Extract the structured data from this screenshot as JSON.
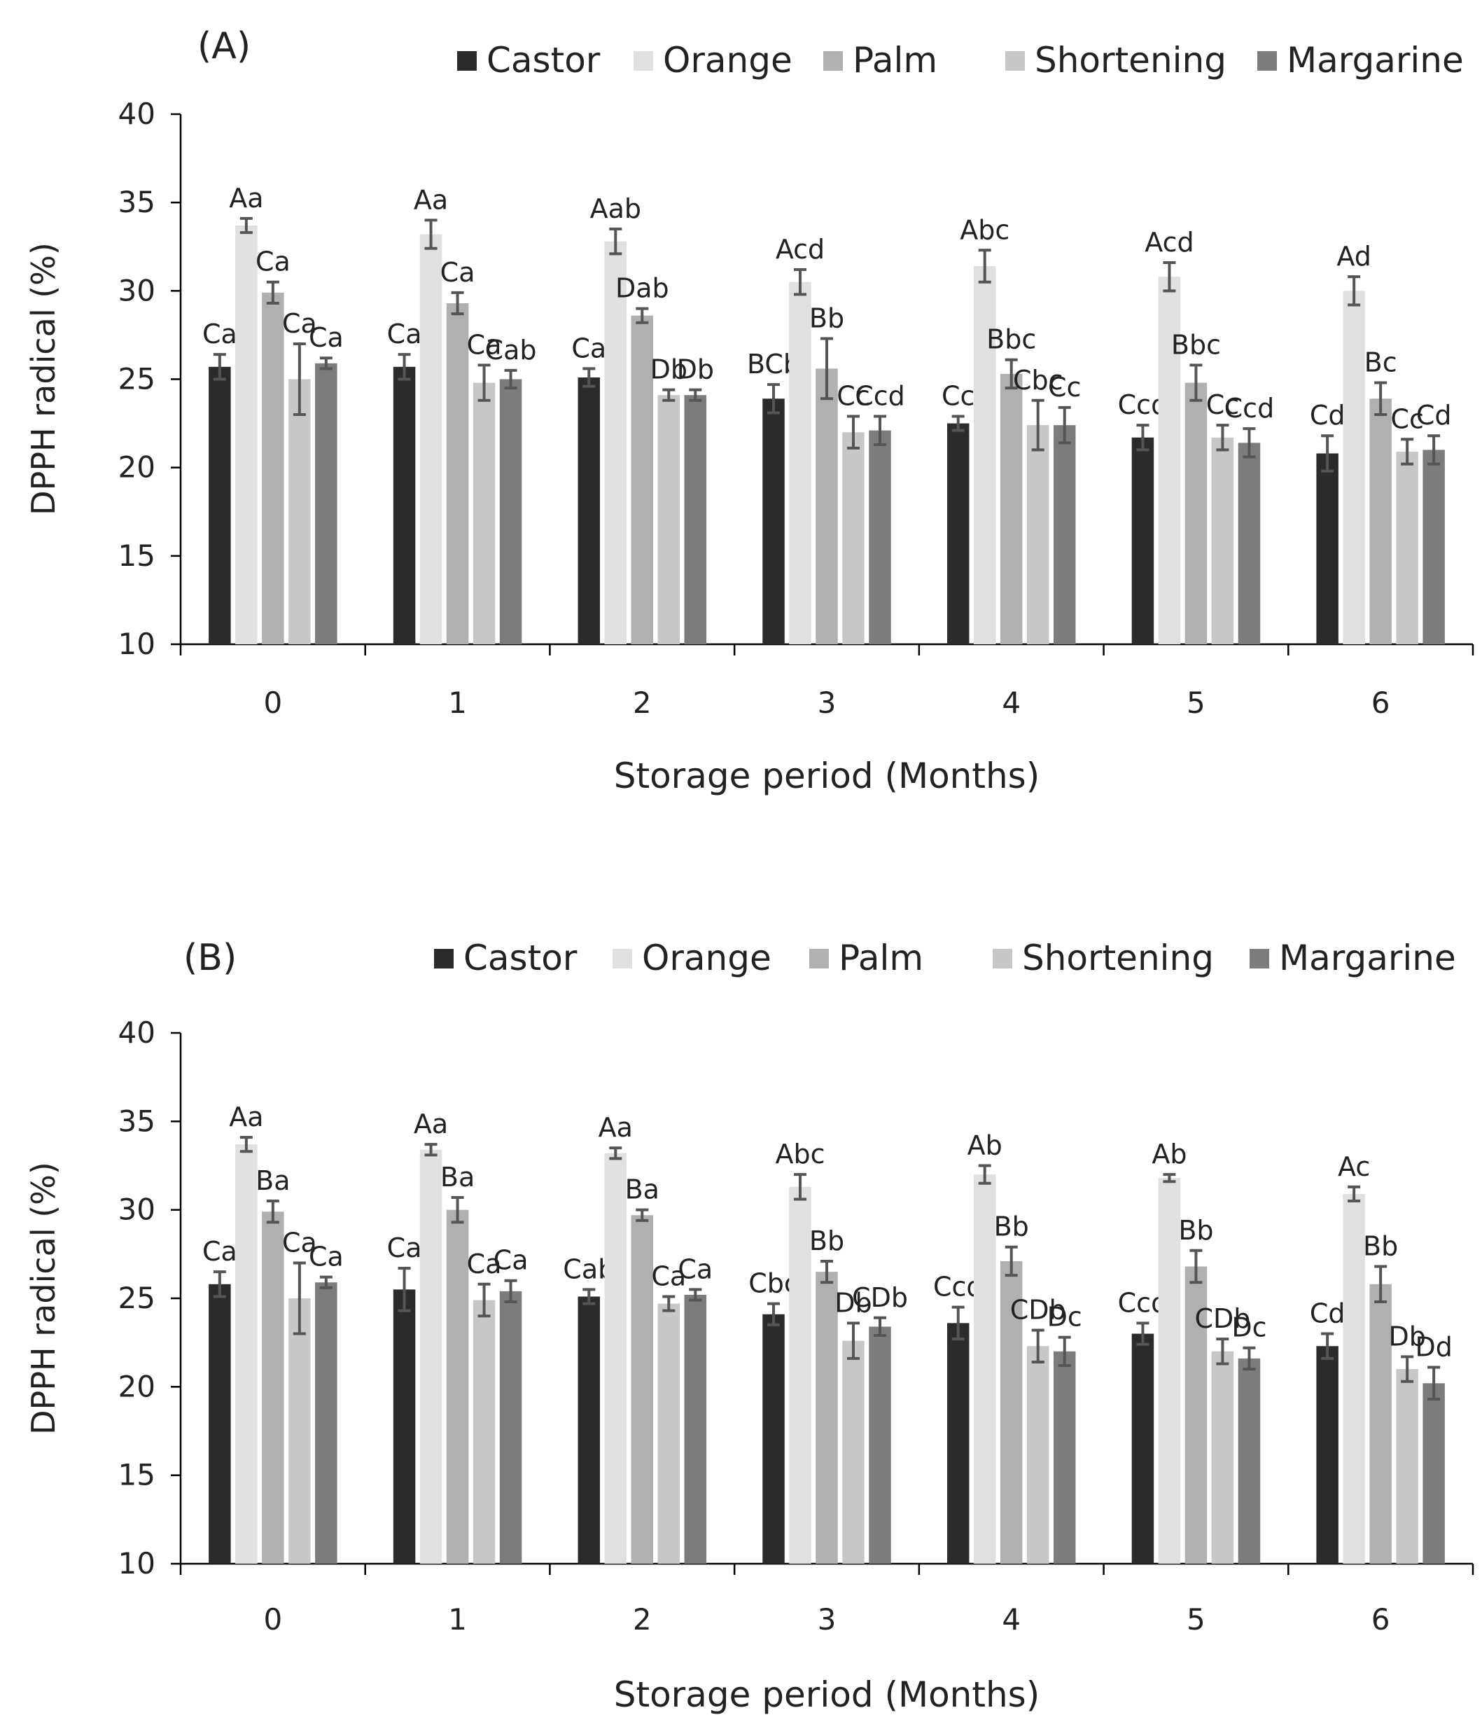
{
  "chart_data": [
    {
      "type": "bar",
      "panel_label": "(A)",
      "xlabel": "Storage period (Months)",
      "ylabel": "DPPH radical (%)",
      "ylim": [
        10,
        40
      ],
      "yticks": [
        "10",
        "15",
        "20",
        "25",
        "30",
        "35",
        "40"
      ],
      "categories": [
        "0",
        "1",
        "2",
        "3",
        "4",
        "5",
        "6"
      ],
      "legend_position": "top-right",
      "series": [
        {
          "name": "Castor",
          "color": "#2b2b2b",
          "values": [
            25.7,
            25.7,
            25.1,
            23.9,
            22.5,
            21.7,
            20.8
          ],
          "errors": [
            0.7,
            0.7,
            0.5,
            0.8,
            0.4,
            0.7,
            1.0
          ],
          "labels": [
            "Ca",
            "Ca",
            "Ca",
            "BCb",
            "Cc",
            "Ccd",
            "Cd"
          ]
        },
        {
          "name": "Orange",
          "color": "#e0e0e0",
          "values": [
            33.7,
            33.2,
            32.8,
            30.5,
            31.4,
            30.8,
            30.0
          ],
          "errors": [
            0.4,
            0.8,
            0.7,
            0.7,
            0.9,
            0.8,
            0.8
          ],
          "labels": [
            "Aa",
            "Aa",
            "Aab",
            "Acd",
            "Abc",
            "Acd",
            "Ad"
          ]
        },
        {
          "name": "Palm",
          "color": "#b0b0b0",
          "values": [
            29.9,
            29.3,
            28.6,
            25.6,
            25.3,
            24.8,
            23.9
          ],
          "errors": [
            0.6,
            0.6,
            0.4,
            1.7,
            0.8,
            1.0,
            0.9
          ],
          "labels": [
            "Ca",
            "Ca",
            "Dab",
            "Bb",
            "Bbc",
            "Bbc",
            "Bc"
          ]
        },
        {
          "name": "Shortening",
          "color": "#c7c7c7",
          "values": [
            25.0,
            24.8,
            24.1,
            22.0,
            22.4,
            21.7,
            20.9
          ],
          "errors": [
            2.0,
            1.0,
            0.3,
            0.9,
            1.4,
            0.7,
            0.7
          ],
          "labels": [
            "Ca",
            "Ca",
            "Db",
            "Cc",
            "Cbc",
            "Cc",
            "Cc"
          ]
        },
        {
          "name": "Margarine",
          "color": "#7c7c7c",
          "values": [
            25.9,
            25.0,
            24.1,
            22.1,
            22.4,
            21.4,
            21.0
          ],
          "errors": [
            0.3,
            0.5,
            0.3,
            0.8,
            1.0,
            0.8,
            0.8
          ],
          "labels": [
            "Ca",
            "Cab",
            "Db",
            "Ccd",
            "Cc",
            "Ccd",
            "Cd"
          ]
        }
      ]
    },
    {
      "type": "bar",
      "panel_label": "(B)",
      "xlabel": "Storage period (Months)",
      "ylabel": "DPPH radical (%)",
      "ylim": [
        10,
        40
      ],
      "yticks": [
        "10",
        "15",
        "20",
        "25",
        "30",
        "35",
        "40"
      ],
      "categories": [
        "0",
        "1",
        "2",
        "3",
        "4",
        "5",
        "6"
      ],
      "legend_position": "top-right",
      "series": [
        {
          "name": "Castor",
          "color": "#2b2b2b",
          "values": [
            25.8,
            25.5,
            25.1,
            24.1,
            23.6,
            23.0,
            22.3
          ],
          "errors": [
            0.7,
            1.2,
            0.4,
            0.6,
            0.9,
            0.6,
            0.7
          ],
          "labels": [
            "Ca",
            "Ca",
            "Cab",
            "Cbc",
            "Ccd",
            "Ccd",
            "Cd"
          ]
        },
        {
          "name": "Orange",
          "color": "#e0e0e0",
          "values": [
            33.7,
            33.4,
            33.2,
            31.3,
            32.0,
            31.8,
            30.9
          ],
          "errors": [
            0.4,
            0.3,
            0.3,
            0.7,
            0.5,
            0.2,
            0.4
          ],
          "labels": [
            "Aa",
            "Aa",
            "Aa",
            "Abc",
            "Ab",
            "Ab",
            "Ac"
          ]
        },
        {
          "name": "Palm",
          "color": "#b0b0b0",
          "values": [
            29.9,
            30.0,
            29.7,
            26.5,
            27.1,
            26.8,
            25.8
          ],
          "errors": [
            0.6,
            0.7,
            0.3,
            0.6,
            0.8,
            0.9,
            1.0
          ],
          "labels": [
            "Ba",
            "Ba",
            "Ba",
            "Bb",
            "Bb",
            "Bb",
            "Bb"
          ]
        },
        {
          "name": "Shortening",
          "color": "#c7c7c7",
          "values": [
            25.0,
            24.9,
            24.7,
            22.6,
            22.3,
            22.0,
            21.0
          ],
          "errors": [
            2.0,
            0.9,
            0.4,
            1.0,
            0.9,
            0.7,
            0.7
          ],
          "labels": [
            "Ca",
            "Ca",
            "Ca",
            "Db",
            "CDb",
            "CDb",
            "Db"
          ]
        },
        {
          "name": "Margarine",
          "color": "#7c7c7c",
          "values": [
            25.9,
            25.4,
            25.2,
            23.4,
            22.0,
            21.6,
            20.2
          ],
          "errors": [
            0.3,
            0.6,
            0.3,
            0.5,
            0.8,
            0.6,
            0.9
          ],
          "labels": [
            "Ca",
            "Ca",
            "Ca",
            "CDb",
            "Dc",
            "Dc",
            "Dd"
          ]
        }
      ]
    }
  ]
}
